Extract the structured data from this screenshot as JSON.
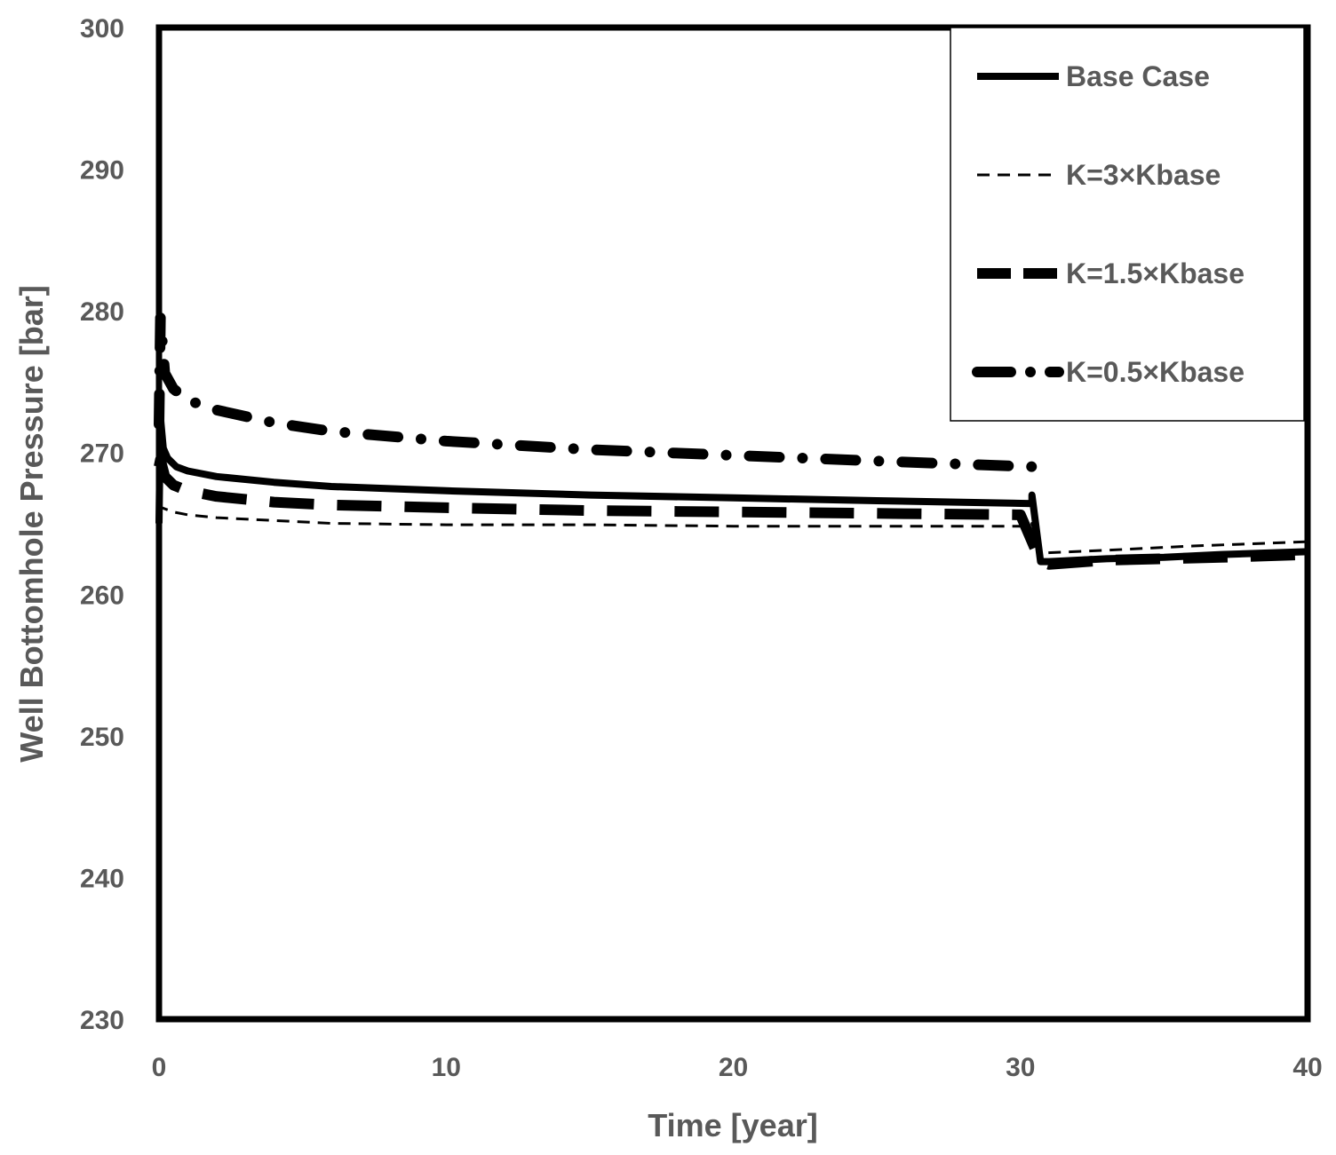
{
  "chart_data": {
    "type": "line",
    "title": "",
    "xlabel": "Time [year]",
    "ylabel": "Well Bottomhole Pressure [bar]",
    "xlim": [
      0,
      40
    ],
    "ylim": [
      230,
      300
    ],
    "xticks": [
      0,
      10,
      20,
      30,
      40
    ],
    "yticks": [
      230,
      240,
      250,
      260,
      270,
      280,
      290,
      300
    ],
    "xtick_labels": [
      "0",
      "10",
      "20",
      "30",
      "40"
    ],
    "ytick_labels": [
      "230",
      "240",
      "250",
      "260",
      "270",
      "280",
      "290",
      "300"
    ],
    "grid": false,
    "legend_position": "top-right",
    "series": [
      {
        "name": "Base Case",
        "style": "solid-thick",
        "color": "#000000",
        "x": [
          0,
          0.05,
          0.15,
          0.3,
          0.6,
          1,
          2,
          4,
          6,
          10,
          15,
          20,
          25,
          30.4,
          30.4,
          30.7,
          31,
          33,
          35,
          37,
          40
        ],
        "y": [
          265,
          272.5,
          270.3,
          269.6,
          269.0,
          268.7,
          268.3,
          267.9,
          267.6,
          267.3,
          267.0,
          266.8,
          266.6,
          266.4,
          267.0,
          262.3,
          262.3,
          262.5,
          262.6,
          262.8,
          263.0
        ]
      },
      {
        "name": "K=3×Kbase",
        "style": "dashed-thin",
        "color": "#000000",
        "x": [
          0,
          0.1,
          0.5,
          1,
          2,
          4,
          6,
          10,
          15,
          20,
          25,
          30.4,
          30.4,
          30.7,
          33,
          36,
          40
        ],
        "y": [
          266.5,
          266.1,
          265.8,
          265.6,
          265.4,
          265.2,
          265.0,
          264.9,
          264.9,
          264.8,
          264.8,
          264.8,
          265.0,
          262.9,
          263.1,
          263.4,
          263.7
        ]
      },
      {
        "name": "K=1.5×Kbase",
        "style": "longdash-thick",
        "color": "#000000",
        "x": [
          0,
          0.05,
          0.2,
          0.5,
          1,
          2,
          4,
          6,
          10,
          15,
          20,
          25,
          30,
          30.7,
          31,
          33,
          35,
          37,
          40
        ],
        "y": [
          269,
          269.5,
          268.3,
          267.7,
          267.3,
          266.9,
          266.5,
          266.3,
          266.1,
          265.9,
          265.8,
          265.7,
          265.6,
          262.3,
          262.1,
          262.4,
          262.5,
          262.6,
          262.8
        ]
      },
      {
        "name": "K=0.5×Kbase",
        "style": "dashdot-thick",
        "color": "#000000",
        "x": [
          0,
          0.05,
          0.2,
          0.5,
          1,
          2,
          4,
          6,
          10,
          15,
          20,
          25,
          30.4
        ],
        "y": [
          272,
          279.5,
          275.6,
          274.5,
          273.7,
          273.0,
          272.1,
          271.5,
          270.8,
          270.2,
          269.8,
          269.4,
          269.0
        ]
      }
    ]
  }
}
